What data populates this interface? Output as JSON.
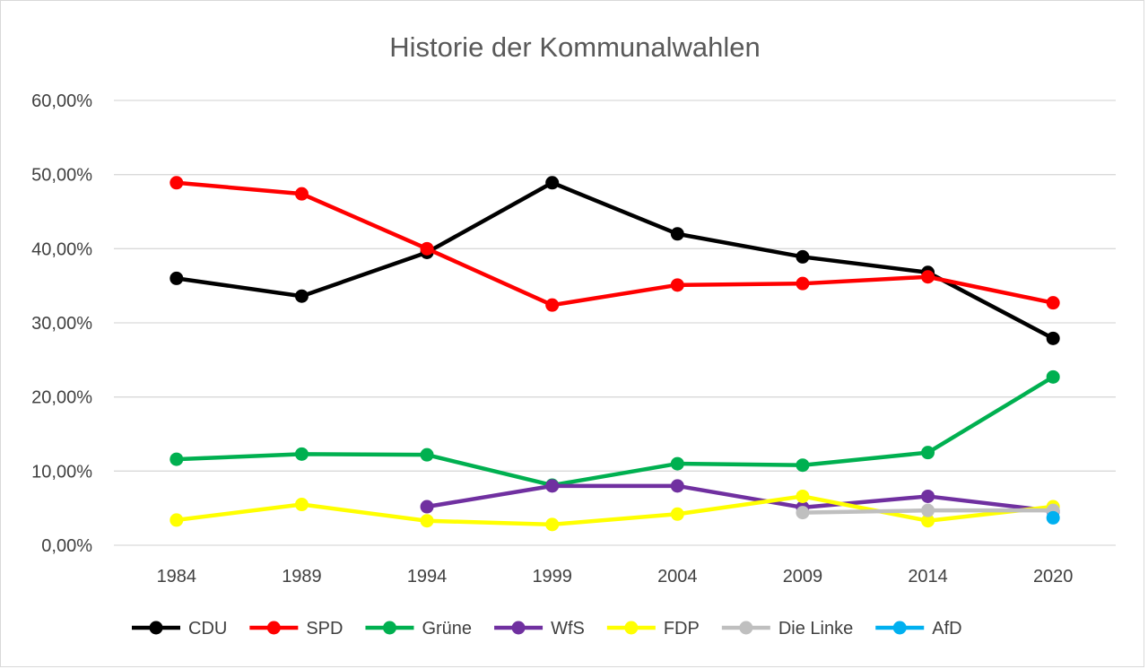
{
  "chart_data": {
    "type": "line",
    "title": "Historie der Kommunalwahlen",
    "xlabel": "",
    "ylabel": "",
    "categories": [
      "1984",
      "1989",
      "1994",
      "1999",
      "2004",
      "2009",
      "2014",
      "2020"
    ],
    "ylim": [
      0,
      60
    ],
    "yticks": [
      0,
      10,
      20,
      30,
      40,
      50,
      60
    ],
    "ytick_labels": [
      "0,00%",
      "10,00%",
      "20,00%",
      "30,00%",
      "40,00%",
      "50,00%",
      "60,00%"
    ],
    "grid": true,
    "legend_position": "bottom",
    "series": [
      {
        "name": "CDU",
        "color": "#000000",
        "values": [
          36.0,
          33.6,
          39.5,
          48.9,
          42.0,
          38.9,
          36.8,
          27.9
        ]
      },
      {
        "name": "SPD",
        "color": "#ff0000",
        "values": [
          48.9,
          47.4,
          40.0,
          32.4,
          35.1,
          35.3,
          36.2,
          32.7
        ]
      },
      {
        "name": "Grüne",
        "color": "#00b050",
        "values": [
          11.6,
          12.3,
          12.2,
          8.1,
          11.0,
          10.8,
          12.5,
          22.7
        ]
      },
      {
        "name": "WfS",
        "color": "#7030a0",
        "values": [
          null,
          null,
          5.2,
          8.0,
          8.0,
          5.1,
          6.6,
          4.6
        ]
      },
      {
        "name": "FDP",
        "color": "#ffff00",
        "values": [
          3.4,
          5.5,
          3.3,
          2.8,
          4.2,
          6.6,
          3.3,
          5.2
        ]
      },
      {
        "name": "Die Linke",
        "color": "#bfbfbf",
        "values": [
          null,
          null,
          null,
          null,
          null,
          4.4,
          4.7,
          4.7
        ]
      },
      {
        "name": "AfD",
        "color": "#00b0f0",
        "values": [
          null,
          null,
          null,
          null,
          null,
          null,
          null,
          3.7
        ]
      }
    ]
  }
}
